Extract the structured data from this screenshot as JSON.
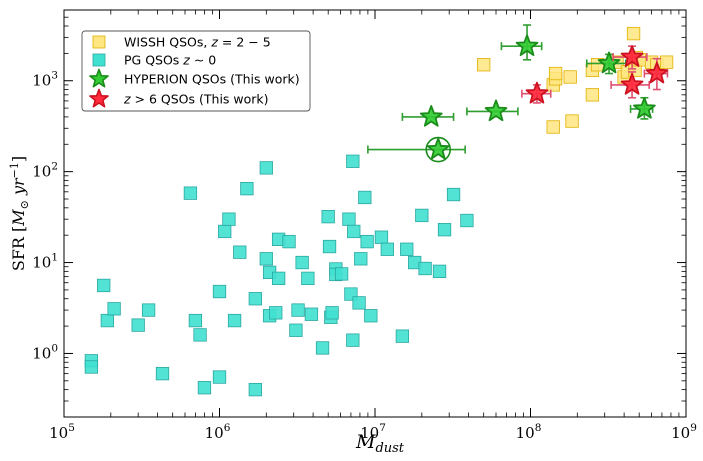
{
  "chart_data": {
    "type": "scatter",
    "xscale": "log",
    "yscale": "log",
    "xlim": [
      100000,
      1000000000
    ],
    "ylim": [
      0.2,
      6000
    ],
    "xlabel": "M_dust",
    "ylabel": "SFR [M_⊙ yr^-1]",
    "xticks": [
      {
        "value": 100000,
        "base": "10",
        "exp": "5"
      },
      {
        "value": 1000000,
        "base": "10",
        "exp": "6"
      },
      {
        "value": 10000000,
        "base": "10",
        "exp": "7"
      },
      {
        "value": 100000000,
        "base": "10",
        "exp": "8"
      },
      {
        "value": 1000000000,
        "base": "10",
        "exp": "9"
      }
    ],
    "yticks": [
      {
        "value": 1,
        "base": "10",
        "exp": "0"
      },
      {
        "value": 10,
        "base": "10",
        "exp": "1"
      },
      {
        "value": 100,
        "base": "10",
        "exp": "2"
      },
      {
        "value": 1000,
        "base": "10",
        "exp": "3"
      }
    ],
    "legend_position": "top-left",
    "series": [
      {
        "name": "WISSH QSOs, z = 2 − 5",
        "legend": {
          "text": "WISSH QSOs, ",
          "italic": "z",
          "rest": " = 2 − 5"
        },
        "marker": "square",
        "color": "#FFE680",
        "edge": "#E0B000",
        "points": [
          [
            50000000,
            1500
          ],
          [
            140000000,
            900
          ],
          [
            145000000,
            1050
          ],
          [
            145000000,
            1200
          ],
          [
            180000000,
            1100
          ],
          [
            250000000,
            1300
          ],
          [
            250000000,
            700
          ],
          [
            270000000,
            1500
          ],
          [
            360000000,
            1600
          ],
          [
            400000000,
            1100
          ],
          [
            420000000,
            1250
          ],
          [
            460000000,
            3300
          ],
          [
            470000000,
            1300
          ],
          [
            480000000,
            1800
          ],
          [
            500000000,
            1700
          ],
          [
            600000000,
            1600
          ],
          [
            650000000,
            1500
          ],
          [
            750000000,
            1600
          ],
          [
            140000000,
            310
          ],
          [
            185000000,
            360
          ]
        ]
      },
      {
        "name": "PG QSOs z ~ 0",
        "legend": {
          "text": "PG QSOs ",
          "italic": "z",
          "rest": " ∼ 0"
        },
        "marker": "square",
        "color": "#40E0D0",
        "edge": "#2AA8A0",
        "points": [
          [
            150000,
            0.83
          ],
          [
            150000,
            0.71
          ],
          [
            180000,
            5.6
          ],
          [
            190000,
            2.3
          ],
          [
            210000,
            3.1
          ],
          [
            300000,
            2.05
          ],
          [
            350000,
            3.0
          ],
          [
            430000,
            0.6
          ],
          [
            650000,
            58
          ],
          [
            700000,
            2.3
          ],
          [
            750000,
            1.6
          ],
          [
            800000,
            0.42
          ],
          [
            1000000,
            0.55
          ],
          [
            1000000,
            4.8
          ],
          [
            1080000,
            22
          ],
          [
            1150000,
            30
          ],
          [
            1250000,
            2.3
          ],
          [
            1350000,
            13
          ],
          [
            1500000,
            65
          ],
          [
            1700000,
            4.0
          ],
          [
            1700000,
            0.4
          ],
          [
            2000000,
            110
          ],
          [
            2000000,
            11
          ],
          [
            2100000,
            2.6
          ],
          [
            2100000,
            7.8
          ],
          [
            2300000,
            2.8
          ],
          [
            2400000,
            6.7
          ],
          [
            2400000,
            18
          ],
          [
            2800000,
            17
          ],
          [
            3100000,
            1.8
          ],
          [
            3200000,
            3.0
          ],
          [
            3400000,
            10
          ],
          [
            3700000,
            6.7
          ],
          [
            3900000,
            2.7
          ],
          [
            4600000,
            1.15
          ],
          [
            5000000,
            32
          ],
          [
            5100000,
            15
          ],
          [
            5200000,
            2.5
          ],
          [
            5300000,
            2.8
          ],
          [
            5600000,
            8.5
          ],
          [
            5600000,
            7.4
          ],
          [
            6100000,
            7.5
          ],
          [
            6800000,
            30
          ],
          [
            7000000,
            4.5
          ],
          [
            7200000,
            1.4
          ],
          [
            7200000,
            130
          ],
          [
            7300000,
            22
          ],
          [
            7900000,
            3.6
          ],
          [
            8100000,
            11
          ],
          [
            8600000,
            52
          ],
          [
            8900000,
            17
          ],
          [
            9400000,
            2.6
          ],
          [
            11000000,
            19
          ],
          [
            12000000,
            14
          ],
          [
            15000000,
            1.55
          ],
          [
            16000000,
            14
          ],
          [
            18000000,
            10
          ],
          [
            20000000,
            33
          ],
          [
            21000000,
            8.6
          ],
          [
            26000000,
            8.0
          ],
          [
            28000000,
            23
          ],
          [
            32000000,
            56
          ],
          [
            39000000,
            29
          ]
        ]
      },
      {
        "name": "HYPERION QSOs (This work)",
        "legend": {
          "text": "HYPERION QSOs (This work)",
          "italic": "",
          "rest": ""
        },
        "marker": "star",
        "color": "#33CC33",
        "edge": "#1A8C1A",
        "errcolor": "#2E9E2E",
        "points": [
          {
            "x": 23000000,
            "y": 400,
            "xerr": [
              15000000,
              32000000
            ],
            "yerr": null
          },
          {
            "x": 25500000,
            "y": 175,
            "xerr": [
              9000000,
              38000000
            ],
            "yerr": null,
            "circled": true
          },
          {
            "x": 60000000,
            "y": 460,
            "xerr": [
              39000000,
              83000000
            ],
            "yerr": null
          },
          {
            "x": 95000000,
            "y": 2400,
            "xerr": [
              65000000,
              118000000
            ],
            "yerr": [
              1700,
              4100
            ]
          },
          {
            "x": 320000000,
            "y": 1550,
            "xerr": [
              230000000,
              410000000
            ],
            "yerr": [
              1200,
              1950
            ]
          },
          {
            "x": 540000000,
            "y": 490,
            "xerr": [
              440000000,
              610000000
            ],
            "yerr": [
              380,
              650
            ]
          }
        ]
      },
      {
        "name": "z > 6 QSOs (This work)",
        "legend": {
          "text": "",
          "italic": "z",
          "rest": " > 6 QSOs (This work)"
        },
        "marker": "star",
        "color": "#FF2A3C",
        "edge": "#CC1020",
        "errcolor": "#E05070",
        "points": [
          {
            "x": 110000000,
            "y": 720,
            "xerr": [
              88000000,
              135000000
            ],
            "yerr": [
              570,
              900
            ]
          },
          {
            "x": 450000000,
            "y": 1820,
            "xerr": [
              340000000,
              560000000
            ],
            "yerr": [
              1350,
              2400
            ]
          },
          {
            "x": 450000000,
            "y": 900,
            "xerr": [
              330000000,
              580000000
            ],
            "yerr": [
              650,
              1250
            ]
          },
          {
            "x": 650000000,
            "y": 1200,
            "xerr": [
              540000000,
              760000000
            ],
            "yerr": [
              800,
              1750
            ]
          }
        ]
      }
    ]
  }
}
